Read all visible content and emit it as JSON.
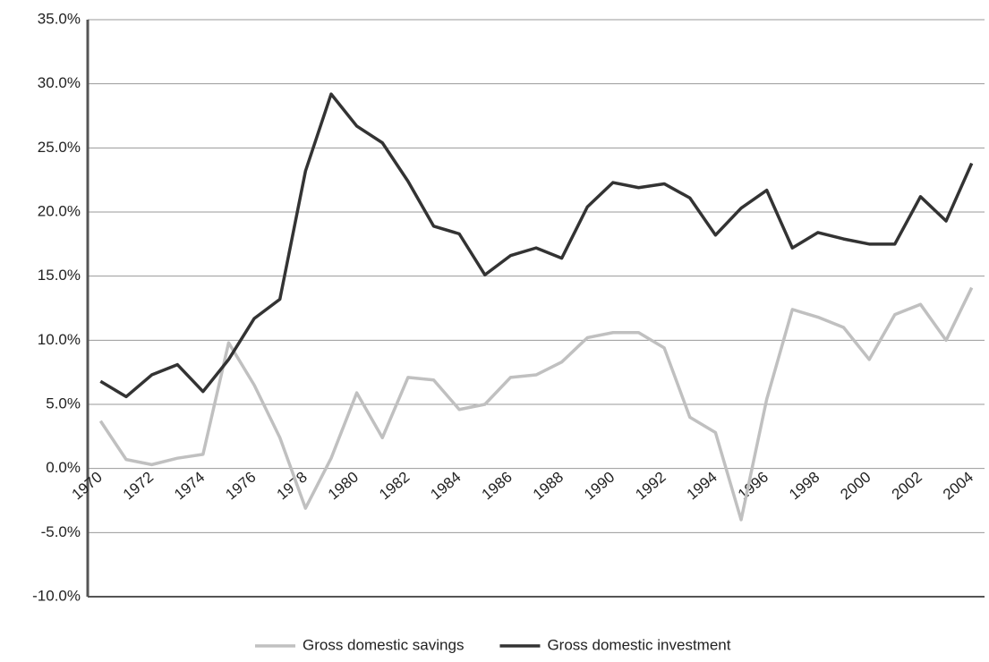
{
  "chart_data": {
    "type": "line",
    "categories": [
      "1970",
      null,
      "1972",
      null,
      "1974",
      null,
      "1976",
      null,
      "1978",
      null,
      "1980",
      null,
      "1982",
      null,
      "1984",
      null,
      "1986",
      null,
      "1988",
      null,
      "1990",
      null,
      "1992",
      null,
      "1994",
      null,
      "1996",
      null,
      "1998",
      null,
      "2000",
      null,
      "2002",
      null,
      "2004"
    ],
    "series": [
      {
        "name": "Gross domestic savings",
        "color": "#c0c0c0",
        "values": [
          3.7,
          0.7,
          0.3,
          0.8,
          1.1,
          9.8,
          6.5,
          2.4,
          -3.1,
          0.8,
          5.9,
          2.4,
          7.1,
          6.9,
          4.6,
          5.0,
          7.1,
          7.3,
          8.3,
          10.2,
          10.6,
          10.6,
          9.4,
          4.0,
          2.8,
          -4.0,
          5.4,
          12.4,
          11.8,
          11.0,
          8.5,
          12.0,
          12.8,
          10.0,
          14.1
        ]
      },
      {
        "name": "Gross domestic investment",
        "color": "#333333",
        "values": [
          6.8,
          5.6,
          7.3,
          8.1,
          6.0,
          8.5,
          11.7,
          13.2,
          23.2,
          29.2,
          26.7,
          25.4,
          22.4,
          18.9,
          18.3,
          15.1,
          16.6,
          17.2,
          16.4,
          20.4,
          22.3,
          21.9,
          22.2,
          21.1,
          18.2,
          20.3,
          21.7,
          17.2,
          18.4,
          17.9,
          17.5,
          17.5,
          21.2,
          19.3,
          23.8
        ]
      }
    ],
    "ylim": [
      -10,
      35
    ],
    "yticks": [
      {
        "value": -10,
        "label": "-10.0%"
      },
      {
        "value": -5,
        "label": "-5.0%"
      },
      {
        "value": 0,
        "label": "0.0%"
      },
      {
        "value": 5,
        "label": "5.0%"
      },
      {
        "value": 10,
        "label": "10.0%"
      },
      {
        "value": 15,
        "label": "15.0%"
      },
      {
        "value": 20,
        "label": "20.0%"
      },
      {
        "value": 25,
        "label": "25.0%"
      },
      {
        "value": 30,
        "label": "30.0%"
      },
      {
        "value": 35,
        "label": "35.0%"
      }
    ],
    "grid": true,
    "legend": "bottom"
  }
}
